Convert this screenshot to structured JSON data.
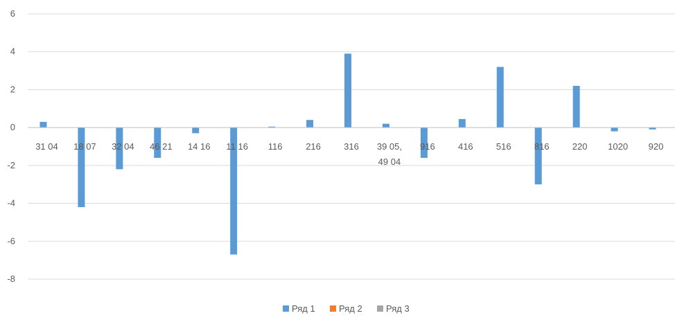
{
  "chart_data": {
    "type": "bar",
    "categories": [
      [
        "31 04"
      ],
      [
        "18 07"
      ],
      [
        "32 04"
      ],
      [
        "46 21"
      ],
      [
        "14 16"
      ],
      [
        "11 16"
      ],
      [
        "116"
      ],
      [
        "216"
      ],
      [
        "316"
      ],
      [
        "39 05,",
        "49 04"
      ],
      [
        "916"
      ],
      [
        "416"
      ],
      [
        "516"
      ],
      [
        "816"
      ],
      [
        "220"
      ],
      [
        "1020"
      ],
      [
        "920"
      ]
    ],
    "series": [
      {
        "name": "Ряд 1",
        "color": "#5b9bd5",
        "values": [
          0.3,
          -4.2,
          -2.2,
          -1.6,
          -0.3,
          -6.7,
          0.05,
          0.4,
          3.9,
          0.2,
          -1.6,
          0.45,
          3.2,
          -3.0,
          2.2,
          -0.2,
          -0.1
        ]
      },
      {
        "name": "Ряд 2",
        "color": "#ed7d31",
        "values": [
          0,
          0,
          0,
          0,
          0,
          0,
          0,
          0,
          0,
          0,
          0,
          0,
          0,
          0,
          0,
          0,
          0
        ]
      },
      {
        "name": "Ряд 3",
        "color": "#a5a5a5",
        "values": [
          0,
          0,
          0,
          0,
          0,
          0,
          0,
          0,
          0,
          0,
          0,
          0,
          0,
          0,
          0,
          0,
          0
        ]
      }
    ],
    "y_ticks": [
      "6",
      "4",
      "2",
      "0",
      "-2",
      "-4",
      "-6",
      "-8"
    ],
    "ylim": [
      -8,
      6
    ],
    "grid": true,
    "legend_position": "bottom"
  }
}
